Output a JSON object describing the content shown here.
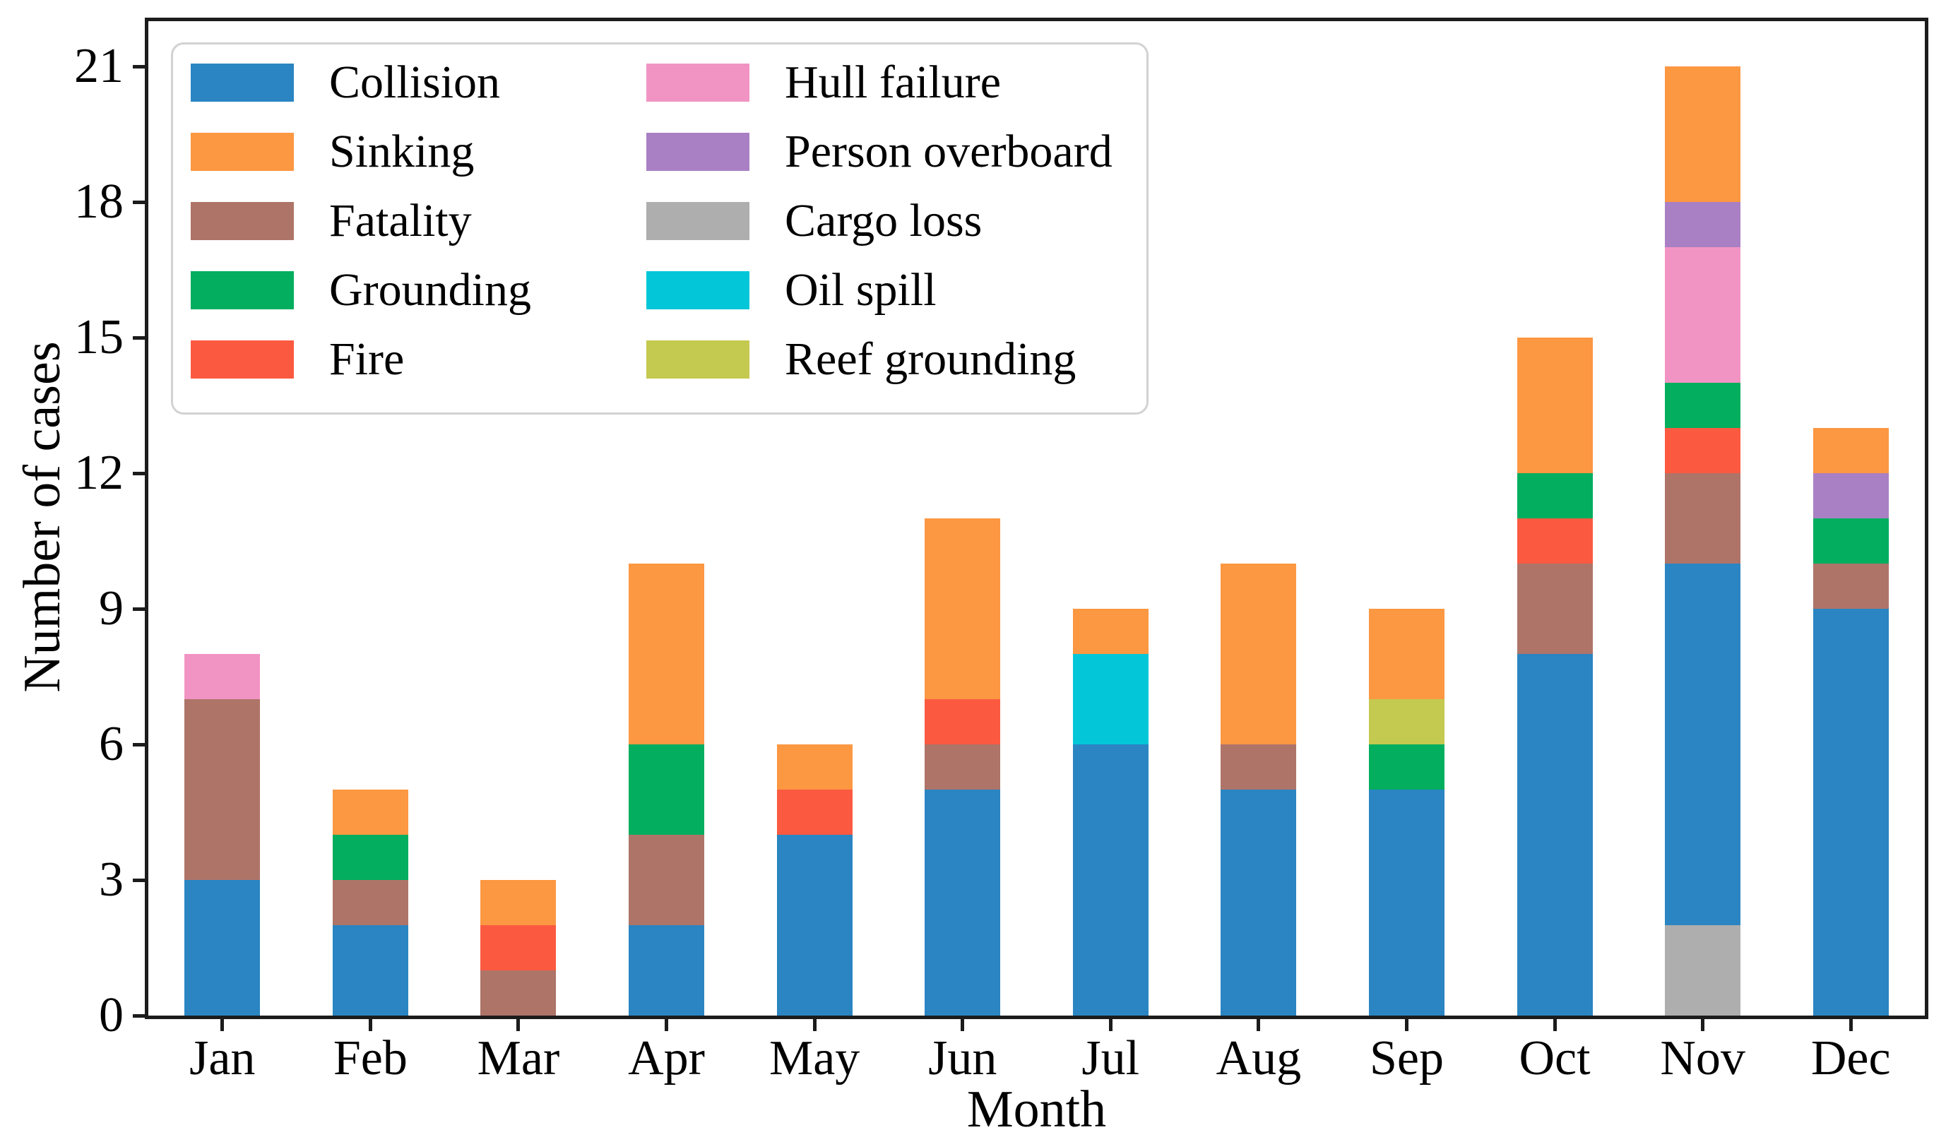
{
  "chart": {
    "xlabel": "Month",
    "ylabel": "Number of cases"
  },
  "chart_data": {
    "type": "bar",
    "stacked": true,
    "stack_order": "alphabetical-by-series-name-bottom-to-top",
    "title": "",
    "xlabel": "Month",
    "ylabel": "Number of cases",
    "categories": [
      "Jan",
      "Feb",
      "Mar",
      "Apr",
      "May",
      "Jun",
      "Jul",
      "Aug",
      "Sep",
      "Oct",
      "Nov",
      "Dec"
    ],
    "ylim": [
      0,
      22
    ],
    "yticks": [
      0,
      3,
      6,
      9,
      12,
      15,
      18,
      21
    ],
    "grid": false,
    "legend_position": "upper-left",
    "legend_columns": 2,
    "series": [
      {
        "name": "Collision",
        "color": "#2a85c2",
        "values": [
          3,
          2,
          0,
          2,
          4,
          5,
          6,
          5,
          5,
          8,
          8,
          9
        ]
      },
      {
        "name": "Sinking",
        "color": "#fc9742",
        "values": [
          0,
          1,
          1,
          4,
          1,
          4,
          1,
          4,
          2,
          3,
          3,
          1
        ]
      },
      {
        "name": "Fatality",
        "color": "#ae7468",
        "values": [
          4,
          1,
          1,
          2,
          0,
          1,
          0,
          1,
          0,
          2,
          2,
          1
        ]
      },
      {
        "name": "Grounding",
        "color": "#03ae5e",
        "values": [
          0,
          1,
          0,
          2,
          0,
          0,
          0,
          0,
          1,
          1,
          1,
          1
        ]
      },
      {
        "name": "Fire",
        "color": "#fb5a41",
        "values": [
          0,
          0,
          1,
          0,
          1,
          1,
          0,
          0,
          0,
          1,
          1,
          0
        ]
      },
      {
        "name": "Hull failure",
        "color": "#f294c3",
        "values": [
          1,
          0,
          0,
          0,
          0,
          0,
          0,
          0,
          0,
          0,
          3,
          0
        ]
      },
      {
        "name": "Person overboard",
        "color": "#aa80c4",
        "values": [
          0,
          0,
          0,
          0,
          0,
          0,
          0,
          0,
          0,
          0,
          1,
          1
        ]
      },
      {
        "name": "Cargo loss",
        "color": "#aeaeae",
        "values": [
          0,
          0,
          0,
          0,
          0,
          0,
          0,
          0,
          0,
          0,
          2,
          0
        ]
      },
      {
        "name": "Oil spill",
        "color": "#03c7d8",
        "values": [
          0,
          0,
          0,
          0,
          0,
          0,
          2,
          0,
          0,
          0,
          0,
          0
        ]
      },
      {
        "name": "Reef grounding",
        "color": "#c4c94f",
        "values": [
          0,
          0,
          0,
          0,
          0,
          0,
          0,
          0,
          1,
          0,
          0,
          0
        ]
      }
    ],
    "totals": [
      8,
      5,
      3,
      10,
      6,
      11,
      9,
      10,
      9,
      15,
      21,
      13
    ]
  }
}
